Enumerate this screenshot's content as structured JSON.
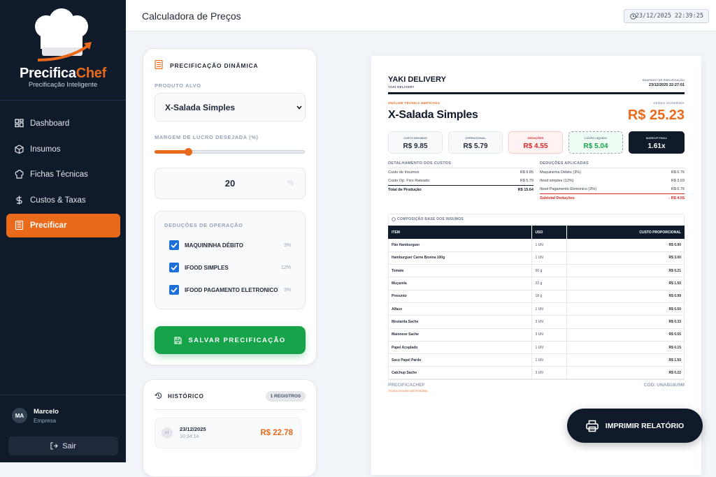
{
  "sidebar": {
    "brand_main": "Precifica",
    "brand_accent": "Chef",
    "tagline": "Precificação Inteligente",
    "nav": [
      "Dashboard",
      "Insumos",
      "Fichas Técnicas",
      "Custos & Taxas",
      "Precificar"
    ],
    "user": {
      "initials": "MA",
      "name": "Marcelo",
      "role": "Empresa"
    },
    "logout": "Sair"
  },
  "header": {
    "title": "Calculadora de Preços",
    "datetime": "23/12/2025 22:39:25"
  },
  "form": {
    "title": "PRECIFICAÇÃO DINÂMICA",
    "product_label": "PRODUTO ALVO",
    "product": "X-Salada Simples",
    "margin_label": "MARGEM DE LUCRO DESEJADA (%)",
    "margin_value": "20",
    "margin_unit": "%",
    "deductions_title": "DEDUÇÕES DE OPERAÇÃO",
    "deductions": [
      {
        "name": "MAQUININHA DÉBITO",
        "rate": "3%"
      },
      {
        "name": "IFOOD SIMPLES",
        "rate": "12%"
      },
      {
        "name": "IFOOD PAGAMENTO ELETRONICO",
        "rate": "3%"
      }
    ],
    "save_button": "SALVAR PRECIFICAÇÃO"
  },
  "history": {
    "title": "HISTÓRICO",
    "count": "1 REGISTROS",
    "entries": [
      {
        "index": "#1",
        "date": "23/12/2025",
        "time": "10:34:14",
        "price": "R$ 22.78"
      }
    ]
  },
  "report": {
    "company": "YAKI DELIVERY",
    "company_sub": "YAKI DELIVERY",
    "snapshot_label": "SNAPSHOT DE PRECIFICAÇÃO",
    "snapshot_date": "23/12/2025 22:27:01",
    "analysis_label": "ANÁLISE TÉCNICA UNIFICADA",
    "product": "X-Salada Simples",
    "suggested_label": "VENDA SUGERIDA",
    "suggested_price": "R$ 25.23",
    "cards": [
      {
        "label": "CUSTO INSUMOS",
        "value": "R$ 9.85"
      },
      {
        "label": "OPERACIONAL",
        "value": "R$ 5.79"
      },
      {
        "label": "DEDUÇÕES",
        "value": "R$ 4.55"
      },
      {
        "label": "LUCRO LÍQUIDO",
        "value": "R$ 5.04"
      },
      {
        "label": "MARKUP FINAL",
        "value": "1.61x"
      }
    ],
    "costs": {
      "title": "DETALHAMENTO DOS CUSTOS",
      "rows": [
        [
          "Custo de Insumos",
          "R$ 9.85"
        ],
        [
          "Custo Op. Fixo Rateado",
          "R$ 5.79"
        ]
      ],
      "total": [
        "Total de Produção",
        "R$ 15.64"
      ]
    },
    "deductions": {
      "title": "DEDUÇÕES APLICADAS",
      "rows": [
        [
          "Maquininha Débito (3%)",
          "R$ 0.76"
        ],
        [
          "Ifood simples (12%)",
          "R$ 3.03"
        ],
        [
          "Ifood Pagamento Eletronico (3%)",
          "R$ 0.76"
        ]
      ],
      "subtotal": [
        "Subtotal Deduções",
        "- R$ 4.55"
      ]
    },
    "composition": {
      "title": "COMPOSIÇÃO BASE DOS INSUMOS",
      "headers": [
        "ITEM",
        "USO",
        "CUSTO PROPORCIONAL"
      ],
      "rows": [
        [
          "Pão Hamburguer",
          "1 UN",
          "R$ 0.90"
        ],
        [
          "Hamburguer Carne Bovina 100g",
          "1 UN",
          "R$ 3.00"
        ],
        [
          "Tomate",
          "60 g",
          "R$ 0.21"
        ],
        [
          "Muçarela",
          "22 g",
          "R$ 1.50"
        ],
        [
          "Presunto",
          "18 g",
          "R$ 0.99"
        ],
        [
          "Alface",
          "1 UN",
          "R$ 0.50"
        ],
        [
          "Mostarda Sache",
          "3 UN",
          "R$ 0.33"
        ],
        [
          "Maionese Sache",
          "3 UN",
          "R$ 0.55"
        ],
        [
          "Papel Acoplado",
          "1 UN",
          "R$ 0.15"
        ],
        [
          "Saco Papel Pardo",
          "1 UN",
          "R$ 1.50"
        ],
        [
          "Catchup Sache",
          "3 UN",
          "R$ 0.22"
        ]
      ]
    },
    "footer_brand": "PRECIFICACHEF",
    "footer_tagline": "TECNOLOGIA EM GASTRONOMIA",
    "code": "CÓD: UNAB18U9M"
  },
  "print_button": "IMPRIMIR RELATÓRIO"
}
